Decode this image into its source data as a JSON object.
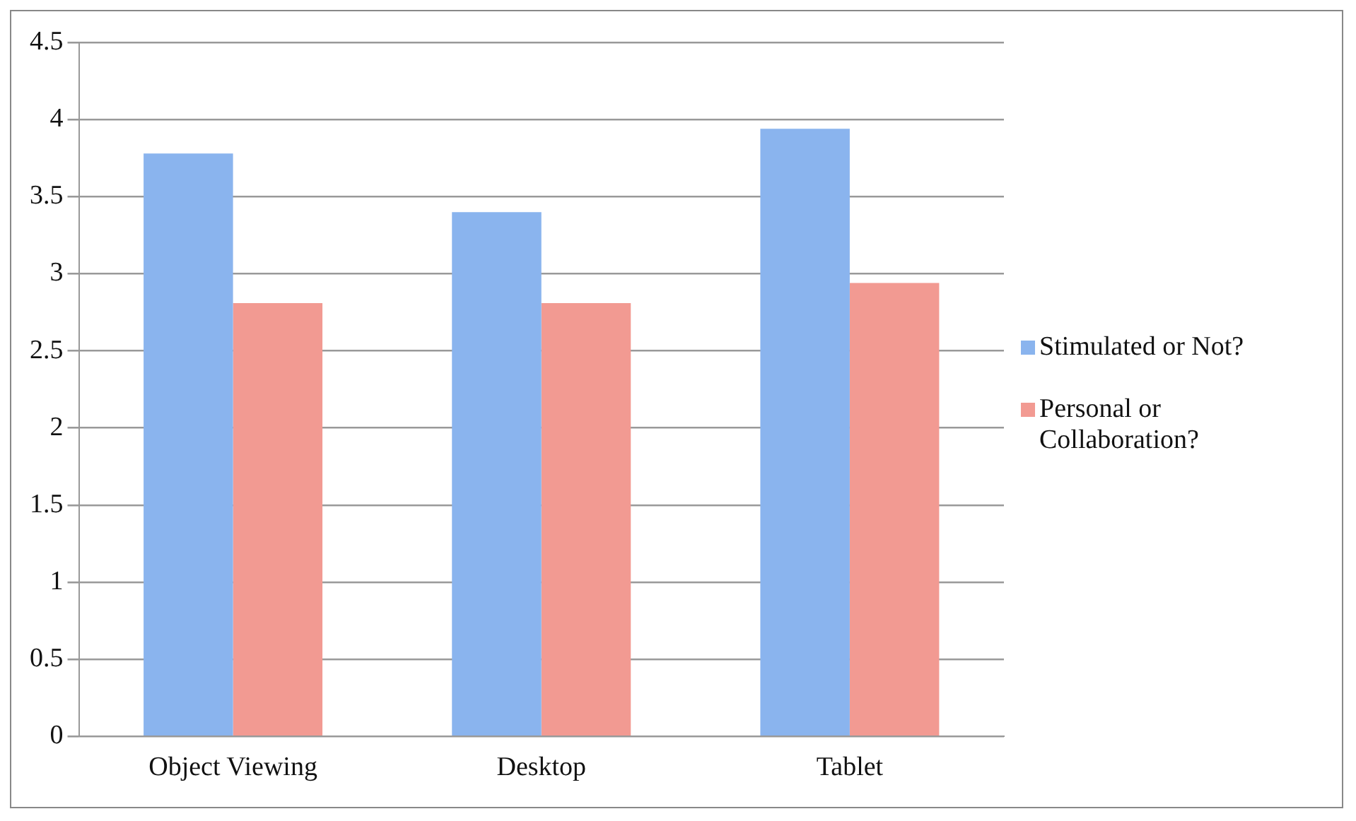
{
  "chart_data": {
    "type": "bar",
    "categories": [
      "Object Viewing",
      "Desktop",
      "Tablet"
    ],
    "series": [
      {
        "name": "Stimulated or Not?",
        "color": "#8ab4ee",
        "values": [
          3.78,
          3.4,
          3.94
        ]
      },
      {
        "name": "Personal or Collaboration?",
        "color": "#f29a92",
        "values": [
          2.81,
          2.81,
          2.94
        ]
      }
    ],
    "ylim": [
      0,
      4.5
    ],
    "yticks": [
      0,
      0.5,
      1,
      1.5,
      2,
      2.5,
      3,
      3.5,
      4,
      4.5
    ],
    "grid": "y",
    "legend": "right"
  }
}
